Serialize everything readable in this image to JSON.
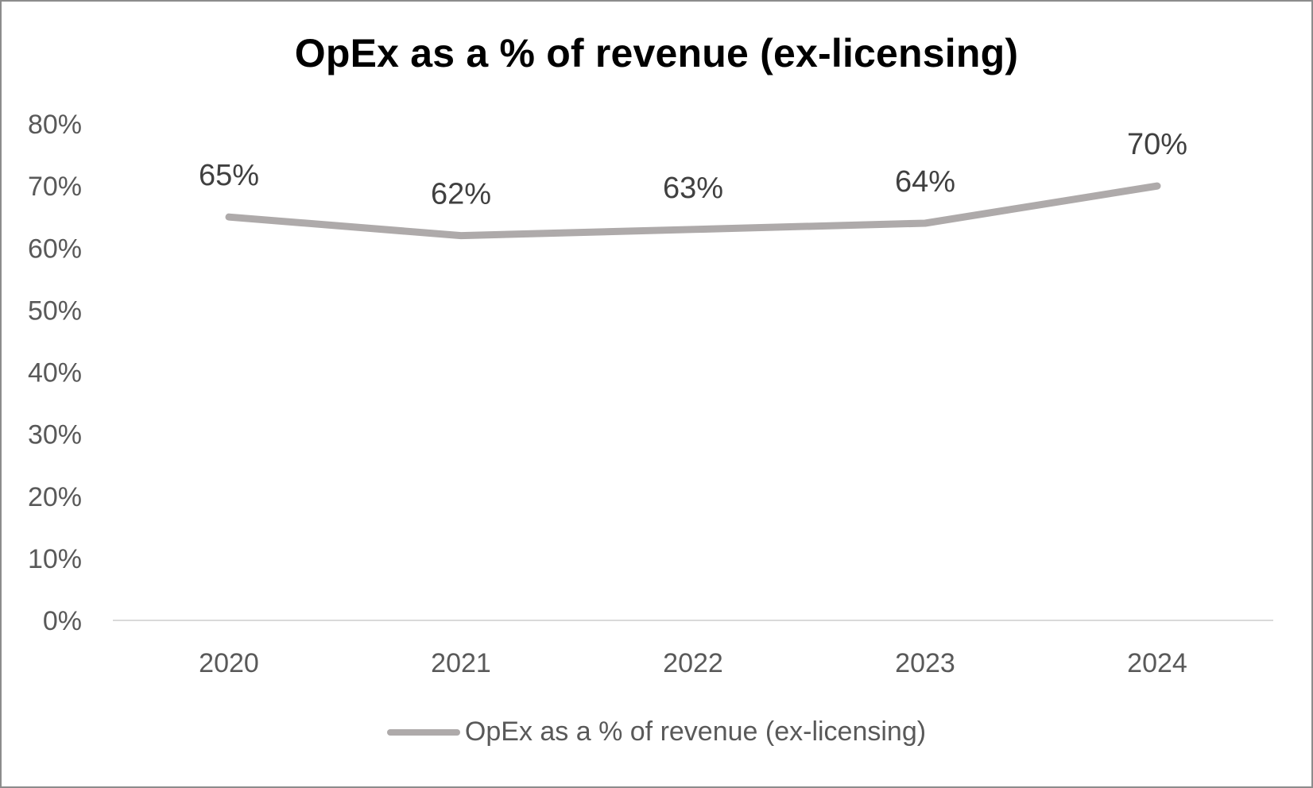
{
  "chart_data": {
    "type": "line",
    "title": "OpEx as a % of revenue (ex-licensing)",
    "categories": [
      "2020",
      "2021",
      "2022",
      "2023",
      "2024"
    ],
    "series": [
      {
        "name": "OpEx as a % of revenue (ex-licensing)",
        "values": [
          65,
          62,
          63,
          64,
          70
        ],
        "data_labels": [
          "65%",
          "62%",
          "63%",
          "64%",
          "70%"
        ]
      }
    ],
    "xlabel": "",
    "ylabel": "",
    "ylim": [
      0,
      80
    ],
    "yticks": [
      0,
      10,
      20,
      30,
      40,
      50,
      60,
      70,
      80
    ],
    "ytick_labels": [
      "0%",
      "10%",
      "20%",
      "30%",
      "40%",
      "50%",
      "60%",
      "70%",
      "80%"
    ],
    "grid": false,
    "legend_position": "bottom",
    "colors": {
      "line": "#aeaaaa",
      "axis": "#d9d9d9",
      "tick_text": "#595959",
      "data_label_text": "#404040",
      "title_text": "#000000",
      "border": "#8c8c8c"
    }
  }
}
